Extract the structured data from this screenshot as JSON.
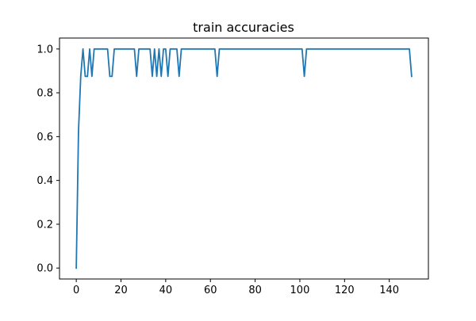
{
  "chart_data": {
    "type": "line",
    "title": "train accuracies",
    "xlabel": "",
    "ylabel": "",
    "xlim": [
      -7.5,
      157.5
    ],
    "ylim": [
      -0.05,
      1.05
    ],
    "x_ticks": [
      0,
      20,
      40,
      60,
      80,
      100,
      120,
      140
    ],
    "y_ticks": [
      0.0,
      0.2,
      0.4,
      0.6,
      0.8,
      1.0
    ],
    "x_tick_labels": [
      "0",
      "20",
      "40",
      "60",
      "80",
      "100",
      "120",
      "140"
    ],
    "y_tick_labels": [
      "0.0",
      "0.2",
      "0.4",
      "0.6",
      "0.8",
      "1.0"
    ],
    "grid": false,
    "line_color": "#1f77b4",
    "series": [
      {
        "name": "",
        "x": [
          0,
          1,
          2,
          3,
          4,
          5,
          6,
          7,
          8,
          9,
          10,
          11,
          12,
          13,
          14,
          15,
          16,
          17,
          18,
          19,
          20,
          21,
          22,
          23,
          24,
          25,
          26,
          27,
          28,
          29,
          30,
          31,
          32,
          33,
          34,
          35,
          36,
          37,
          38,
          39,
          40,
          41,
          42,
          43,
          44,
          45,
          46,
          47,
          48,
          49,
          50,
          51,
          52,
          53,
          54,
          55,
          56,
          57,
          58,
          59,
          60,
          61,
          62,
          63,
          64,
          65,
          66,
          67,
          68,
          69,
          70,
          71,
          72,
          73,
          74,
          75,
          76,
          77,
          78,
          79,
          80,
          81,
          82,
          83,
          84,
          85,
          86,
          87,
          88,
          89,
          90,
          91,
          92,
          93,
          94,
          95,
          96,
          97,
          98,
          99,
          100,
          101,
          102,
          103,
          104,
          105,
          106,
          107,
          108,
          109,
          110,
          111,
          112,
          113,
          114,
          115,
          116,
          117,
          118,
          119,
          120,
          121,
          122,
          123,
          124,
          125,
          126,
          127,
          128,
          129,
          130,
          131,
          132,
          133,
          134,
          135,
          136,
          137,
          138,
          139,
          140,
          141,
          142,
          143,
          144,
          145,
          146,
          147,
          148,
          149,
          150
        ],
        "y": [
          0.0,
          0.625,
          0.875,
          1.0,
          0.875,
          0.875,
          1.0,
          0.875,
          1.0,
          1.0,
          1.0,
          1.0,
          1.0,
          1.0,
          1.0,
          0.875,
          0.875,
          1.0,
          1.0,
          1.0,
          1.0,
          1.0,
          1.0,
          1.0,
          1.0,
          1.0,
          1.0,
          0.875,
          1.0,
          1.0,
          1.0,
          1.0,
          1.0,
          1.0,
          0.875,
          1.0,
          0.875,
          1.0,
          0.875,
          1.0,
          1.0,
          0.875,
          1.0,
          1.0,
          1.0,
          1.0,
          0.875,
          1.0,
          1.0,
          1.0,
          1.0,
          1.0,
          1.0,
          1.0,
          1.0,
          1.0,
          1.0,
          1.0,
          1.0,
          1.0,
          1.0,
          1.0,
          1.0,
          0.875,
          1.0,
          1.0,
          1.0,
          1.0,
          1.0,
          1.0,
          1.0,
          1.0,
          1.0,
          1.0,
          1.0,
          1.0,
          1.0,
          1.0,
          1.0,
          1.0,
          1.0,
          1.0,
          1.0,
          1.0,
          1.0,
          1.0,
          1.0,
          1.0,
          1.0,
          1.0,
          1.0,
          1.0,
          1.0,
          1.0,
          1.0,
          1.0,
          1.0,
          1.0,
          1.0,
          1.0,
          1.0,
          1.0,
          0.875,
          1.0,
          1.0,
          1.0,
          1.0,
          1.0,
          1.0,
          1.0,
          1.0,
          1.0,
          1.0,
          1.0,
          1.0,
          1.0,
          1.0,
          1.0,
          1.0,
          1.0,
          1.0,
          1.0,
          1.0,
          1.0,
          1.0,
          1.0,
          1.0,
          1.0,
          1.0,
          1.0,
          1.0,
          1.0,
          1.0,
          1.0,
          1.0,
          1.0,
          1.0,
          1.0,
          1.0,
          1.0,
          1.0,
          1.0,
          1.0,
          1.0,
          1.0,
          1.0,
          1.0,
          1.0,
          1.0,
          1.0,
          0.875
        ]
      }
    ]
  }
}
